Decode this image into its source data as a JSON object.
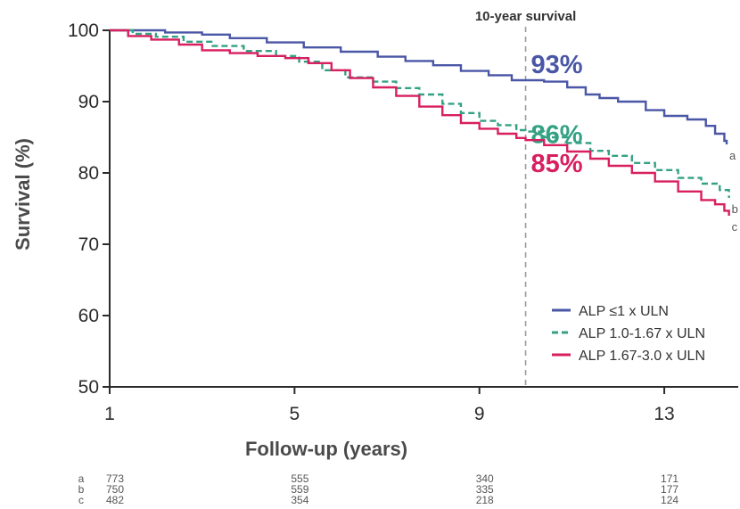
{
  "chart_data": {
    "type": "line",
    "title": "",
    "xlabel": "Follow-up (years)",
    "ylabel": "Survival (%)",
    "xlim": [
      1,
      14.6
    ],
    "ylim": [
      50,
      100
    ],
    "x_ticks": [
      1,
      5,
      9,
      13
    ],
    "y_ticks": [
      50,
      60,
      70,
      80,
      90,
      100
    ],
    "reference_line": {
      "x": 10,
      "label": "10-year survival"
    },
    "legend_position": "bottom-right",
    "series": [
      {
        "name": "ALP ≤1 x ULN",
        "end_label": "a",
        "callout": "93%",
        "color": "#4a56a6",
        "dash": "solid",
        "x": [
          1,
          1.6,
          2.2,
          3.0,
          3.6,
          4.4,
          5.2,
          6.0,
          6.8,
          7.4,
          8.0,
          8.6,
          9.2,
          9.7,
          10.0,
          10.4,
          10.9,
          11.3,
          11.6,
          12.0,
          12.6,
          13.0,
          13.5,
          13.9,
          14.1,
          14.3,
          14.35
        ],
        "y": [
          100,
          100,
          99.7,
          99.4,
          98.9,
          98.3,
          97.6,
          97.0,
          96.3,
          95.7,
          95.1,
          94.3,
          93.7,
          93.0,
          93.0,
          92.8,
          92.0,
          91.0,
          90.5,
          90.0,
          88.8,
          88.0,
          87.5,
          86.6,
          85.5,
          84.5,
          84.0
        ]
      },
      {
        "name": "ALP 1.0-1.67 x ULN",
        "end_label": "b",
        "callout": "86%",
        "color": "#34a184",
        "dash": "dashed",
        "x": [
          1,
          1.5,
          2.0,
          2.6,
          3.2,
          3.9,
          4.6,
          5.1,
          5.6,
          6.1,
          6.7,
          7.2,
          7.7,
          8.2,
          8.6,
          9.0,
          9.4,
          9.8,
          10.0,
          10.4,
          10.9,
          11.4,
          11.8,
          12.3,
          12.8,
          13.3,
          13.8,
          14.2,
          14.4
        ],
        "y": [
          100,
          99.5,
          99.1,
          98.4,
          97.8,
          97.1,
          96.4,
          95.6,
          94.4,
          93.4,
          92.8,
          91.9,
          91.0,
          89.7,
          88.4,
          87.3,
          86.7,
          86.0,
          85.8,
          85.0,
          84.2,
          83.1,
          82.4,
          81.4,
          80.4,
          79.3,
          78.5,
          77.6,
          76.5
        ]
      },
      {
        "name": "ALP 1.67-3.0 x ULN",
        "end_label": "c",
        "callout": "85%",
        "color": "#d81f5f",
        "dash": "solid",
        "x": [
          1,
          1.4,
          1.9,
          2.5,
          3.0,
          3.6,
          4.2,
          4.8,
          5.3,
          5.8,
          6.2,
          6.7,
          7.2,
          7.7,
          8.2,
          8.6,
          9.0,
          9.4,
          9.8,
          10.0,
          10.4,
          10.9,
          11.4,
          11.8,
          12.3,
          12.8,
          13.3,
          13.8,
          14.1,
          14.3,
          14.4
        ],
        "y": [
          100,
          99.2,
          98.7,
          98.0,
          97.2,
          96.8,
          96.4,
          96.1,
          95.4,
          94.4,
          93.3,
          92.0,
          90.8,
          89.3,
          88.1,
          87.0,
          86.2,
          85.5,
          84.9,
          84.6,
          83.9,
          83.0,
          82.0,
          81.0,
          80.0,
          78.8,
          77.4,
          76.2,
          75.6,
          74.7,
          74.0
        ]
      }
    ],
    "numbers_at_risk": {
      "x": [
        1,
        5,
        9,
        13
      ],
      "rows": [
        {
          "label": "a",
          "values": [
            "773",
            "555",
            "340",
            "171"
          ]
        },
        {
          "label": "b",
          "values": [
            "750",
            "559",
            "335",
            "177"
          ]
        },
        {
          "label": "c",
          "values": [
            "482",
            "354",
            "218",
            "124"
          ]
        }
      ]
    }
  }
}
